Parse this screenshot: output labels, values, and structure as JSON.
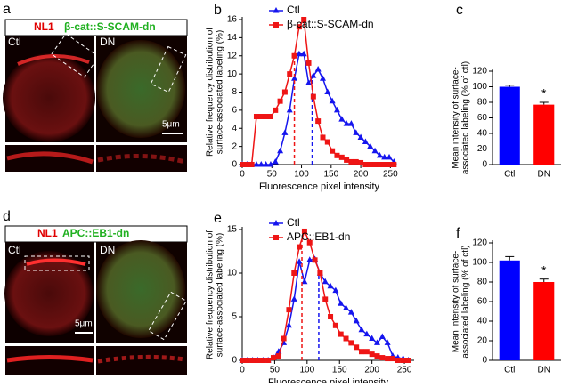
{
  "image_panels": [
    {
      "letter": "a",
      "marker": "NL1",
      "construct": "β-cat::S-SCAM-dn",
      "left": "Ctl",
      "right": "DN",
      "scale": "5μm"
    },
    {
      "letter": "d",
      "marker": "NL1",
      "construct": "APC::EB1-dn",
      "left": "Ctl",
      "right": "DN",
      "scale": "5μm"
    }
  ],
  "chart_data": [
    {
      "type": "line",
      "letter": "b",
      "xlabel": "Fluorescence pixel intensity",
      "ylabel": [
        "Relative frequency distribution of",
        "surface-associated labeling (%)"
      ],
      "xlim": [
        0,
        260
      ],
      "xticks": [
        0,
        50,
        100,
        150,
        200,
        250
      ],
      "ylim": [
        0,
        16
      ],
      "yticks": [
        0,
        2,
        4,
        6,
        8,
        10,
        12,
        14,
        16
      ],
      "x": [
        0,
        8,
        16,
        24,
        32,
        40,
        48,
        56,
        64,
        72,
        80,
        88,
        96,
        104,
        112,
        120,
        128,
        136,
        144,
        152,
        160,
        168,
        176,
        184,
        192,
        200,
        208,
        216,
        224,
        232,
        240,
        248,
        256
      ],
      "series": [
        {
          "name": "Ctl",
          "color": "#1515ee",
          "marker": "triangle",
          "mean": 118,
          "values": [
            0,
            0,
            0,
            0,
            0,
            0,
            0,
            0.3,
            1.5,
            3.5,
            6,
            9.5,
            12.2,
            12.2,
            9,
            9.8,
            10.5,
            9.5,
            8,
            7,
            6,
            5,
            4.5,
            4.5,
            3.5,
            3,
            2.5,
            2,
            1.5,
            1,
            0.8,
            0.8,
            0.3
          ]
        },
        {
          "name": "β-cat::S-SCAM-dn",
          "color": "#ee1515",
          "marker": "square",
          "mean": 88,
          "values": [
            0,
            0,
            0,
            5.3,
            5.3,
            5.3,
            5.3,
            6,
            7,
            8,
            10,
            12,
            15.2,
            16,
            11.2,
            7.5,
            4.8,
            3,
            2.5,
            1.5,
            1,
            0.8,
            0.5,
            0.3,
            0.3,
            0.2,
            0,
            0,
            0,
            0,
            0,
            0,
            0
          ]
        }
      ]
    },
    {
      "type": "bar",
      "letter": "c",
      "ylabel": [
        "Mean intensity of surface-",
        "associated labeling (% of ctl)"
      ],
      "categories": [
        "Ctl",
        "DN"
      ],
      "values": [
        100,
        77
      ],
      "errors": [
        2,
        3
      ],
      "colors": [
        "#0000ff",
        "#ff0000"
      ],
      "ylim": [
        0,
        120
      ],
      "yticks": [
        0,
        20,
        40,
        60,
        80,
        100,
        120
      ],
      "annotations": [
        {
          "text": "*",
          "x": "DN"
        }
      ]
    },
    {
      "type": "line",
      "letter": "e",
      "xlabel": "Fluorescence pixel intensity",
      "ylabel": [
        "Relative frequency distribution of",
        "surface-associated labeling (%)"
      ],
      "xlim": [
        0,
        265
      ],
      "xticks": [
        0,
        50,
        100,
        150,
        200,
        250
      ],
      "ylim": [
        0,
        15
      ],
      "yticks": [
        0,
        5,
        10,
        15
      ],
      "x": [
        0,
        8,
        16,
        24,
        32,
        40,
        48,
        56,
        64,
        72,
        80,
        88,
        96,
        104,
        112,
        120,
        128,
        136,
        144,
        152,
        160,
        168,
        176,
        184,
        192,
        200,
        208,
        216,
        224,
        232,
        240,
        248,
        256
      ],
      "series": [
        {
          "name": "Ctl",
          "color": "#1515ee",
          "marker": "triangle",
          "mean": 118,
          "values": [
            0,
            0,
            0,
            0,
            0,
            0,
            0.3,
            1,
            2,
            4,
            7,
            11.3,
            9,
            11.5,
            11.6,
            10,
            9,
            8.5,
            8,
            6.5,
            6,
            5.5,
            4.5,
            3.5,
            3,
            2.5,
            2,
            2.7,
            2,
            0.5,
            0.3,
            0.2,
            0
          ]
        },
        {
          "name": "APC::EB1-dn",
          "color": "#ee1515",
          "marker": "square",
          "mean": 92,
          "values": [
            0,
            0,
            0,
            0,
            0,
            0,
            0.3,
            0.5,
            2.5,
            5.8,
            10,
            13,
            14.8,
            13.5,
            11.5,
            10,
            7,
            5,
            4,
            3,
            2.5,
            2,
            1.5,
            1,
            1,
            0.7,
            0.5,
            0.3,
            0.2,
            0.2,
            0,
            0,
            0
          ]
        }
      ]
    },
    {
      "type": "bar",
      "letter": "f",
      "ylabel": [
        "Mean intensity of surface-",
        "associated labeling (% of ctl)"
      ],
      "categories": [
        "Ctl",
        "DN"
      ],
      "values": [
        102,
        80
      ],
      "errors": [
        4,
        3
      ],
      "colors": [
        "#0000ff",
        "#ff0000"
      ],
      "ylim": [
        0,
        120
      ],
      "yticks": [
        0,
        20,
        40,
        60,
        80,
        100,
        120
      ],
      "annotations": [
        {
          "text": "*",
          "x": "DN"
        }
      ]
    }
  ]
}
